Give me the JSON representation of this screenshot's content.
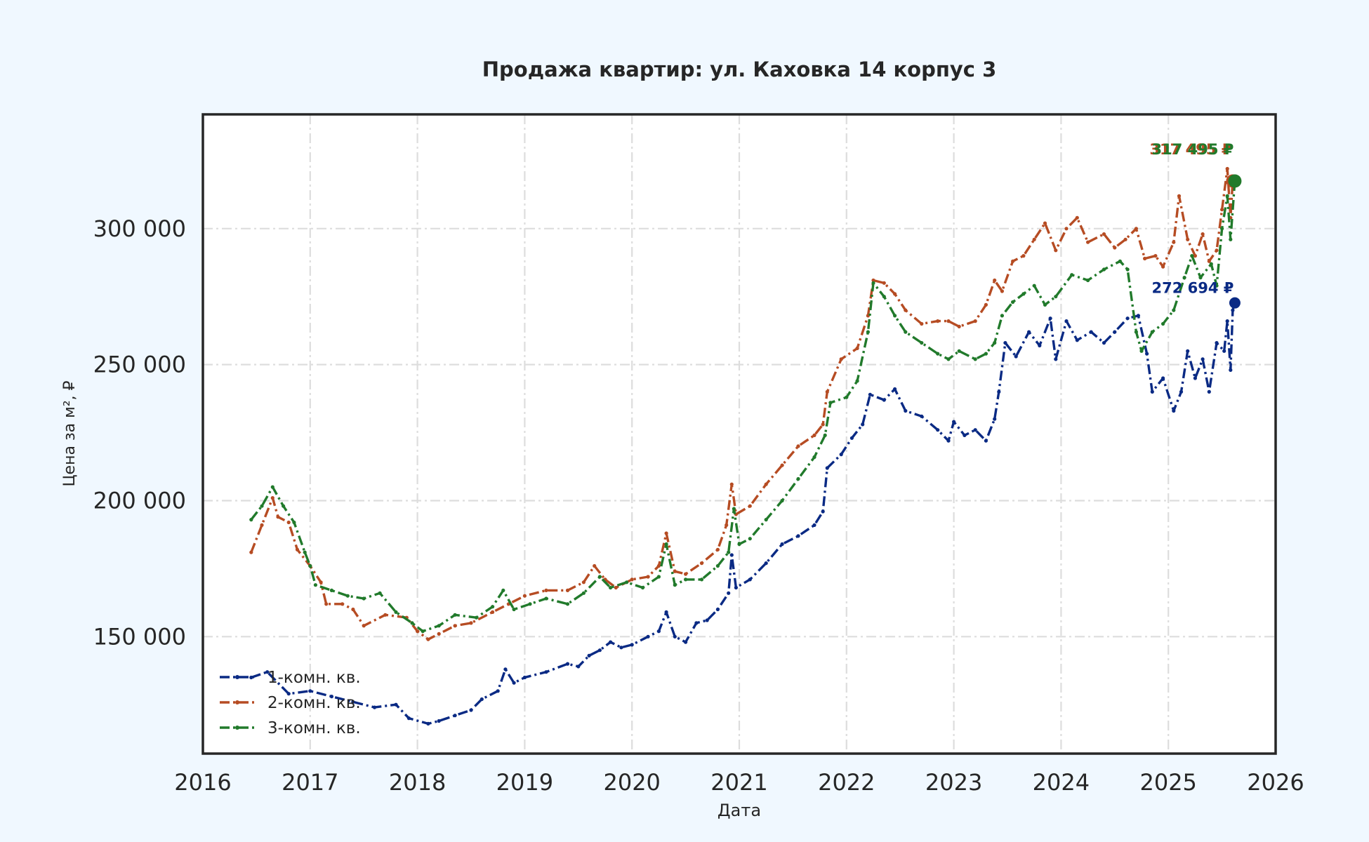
{
  "chart_data": {
    "type": "line",
    "title": "Продажа квартир: ул. Каховка 14 корпус 3",
    "xlabel": "Дата",
    "ylabel": "Цена за м², ₽",
    "xlim": [
      2016.0,
      2026.0
    ],
    "ylim": [
      107000,
      342000
    ],
    "x_ticks": [
      "2016",
      "2017",
      "2018",
      "2019",
      "2020",
      "2021",
      "2022",
      "2023",
      "2024",
      "2025",
      "2026"
    ],
    "y_ticks": [
      {
        "value": 150000,
        "label": "150 000"
      },
      {
        "value": 200000,
        "label": "200 000"
      },
      {
        "value": 250000,
        "label": "250 000"
      },
      {
        "value": 300000,
        "label": "300 000"
      }
    ],
    "grid": true,
    "legend_position": "lower-left",
    "series": [
      {
        "name": "1-комн. кв.",
        "color": "#0a2a84",
        "end_label": "272 694 ₽",
        "end_value": 272694,
        "points": [
          [
            2016.45,
            135000
          ],
          [
            2016.6,
            137000
          ],
          [
            2016.8,
            129000
          ],
          [
            2017.0,
            130000
          ],
          [
            2017.2,
            128000
          ],
          [
            2017.4,
            126000
          ],
          [
            2017.6,
            124000
          ],
          [
            2017.8,
            125000
          ],
          [
            2017.92,
            120000
          ],
          [
            2018.1,
            118000
          ],
          [
            2018.2,
            119000
          ],
          [
            2018.35,
            121000
          ],
          [
            2018.5,
            123000
          ],
          [
            2018.6,
            127000
          ],
          [
            2018.75,
            130000
          ],
          [
            2018.82,
            138000
          ],
          [
            2018.9,
            133000
          ],
          [
            2019.0,
            135000
          ],
          [
            2019.2,
            137000
          ],
          [
            2019.4,
            140000
          ],
          [
            2019.5,
            139000
          ],
          [
            2019.6,
            143000
          ],
          [
            2019.7,
            145000
          ],
          [
            2019.8,
            148000
          ],
          [
            2019.9,
            146000
          ],
          [
            2020.0,
            147000
          ],
          [
            2020.15,
            150000
          ],
          [
            2020.25,
            152000
          ],
          [
            2020.32,
            159000
          ],
          [
            2020.4,
            150000
          ],
          [
            2020.5,
            148000
          ],
          [
            2020.6,
            155000
          ],
          [
            2020.7,
            156000
          ],
          [
            2020.8,
            160000
          ],
          [
            2020.9,
            166000
          ],
          [
            2020.93,
            180000
          ],
          [
            2020.97,
            168000
          ],
          [
            2021.1,
            171000
          ],
          [
            2021.25,
            177000
          ],
          [
            2021.4,
            184000
          ],
          [
            2021.55,
            187000
          ],
          [
            2021.7,
            191000
          ],
          [
            2021.78,
            196000
          ],
          [
            2021.82,
            212000
          ],
          [
            2021.95,
            217000
          ],
          [
            2022.05,
            223000
          ],
          [
            2022.15,
            228000
          ],
          [
            2022.22,
            239000
          ],
          [
            2022.35,
            237000
          ],
          [
            2022.45,
            241000
          ],
          [
            2022.55,
            233000
          ],
          [
            2022.7,
            231000
          ],
          [
            2022.85,
            226000
          ],
          [
            2022.95,
            222000
          ],
          [
            2023.0,
            229000
          ],
          [
            2023.1,
            224000
          ],
          [
            2023.2,
            226000
          ],
          [
            2023.3,
            222000
          ],
          [
            2023.38,
            230000
          ],
          [
            2023.42,
            240000
          ],
          [
            2023.48,
            258000
          ],
          [
            2023.58,
            253000
          ],
          [
            2023.7,
            262000
          ],
          [
            2023.8,
            257000
          ],
          [
            2023.9,
            267000
          ],
          [
            2023.95,
            252000
          ],
          [
            2024.05,
            266000
          ],
          [
            2024.15,
            259000
          ],
          [
            2024.28,
            262000
          ],
          [
            2024.4,
            258000
          ],
          [
            2024.5,
            262000
          ],
          [
            2024.62,
            267000
          ],
          [
            2024.72,
            268000
          ],
          [
            2024.8,
            254000
          ],
          [
            2024.85,
            240000
          ],
          [
            2024.95,
            245000
          ],
          [
            2025.05,
            233000
          ],
          [
            2025.12,
            240000
          ],
          [
            2025.18,
            255000
          ],
          [
            2025.25,
            245000
          ],
          [
            2025.32,
            252000
          ],
          [
            2025.38,
            240000
          ],
          [
            2025.45,
            258000
          ],
          [
            2025.52,
            255000
          ],
          [
            2025.55,
            266000
          ],
          [
            2025.58,
            248000
          ],
          [
            2025.6,
            270000
          ],
          [
            2025.62,
            272694
          ]
        ]
      },
      {
        "name": "2-комн. кв.",
        "color": "#b64c23",
        "end_label": "317 495 ₽",
        "end_value": 317495,
        "points": [
          [
            2016.45,
            181000
          ],
          [
            2016.55,
            191000
          ],
          [
            2016.65,
            201000
          ],
          [
            2016.7,
            194000
          ],
          [
            2016.8,
            192000
          ],
          [
            2016.88,
            182000
          ],
          [
            2017.0,
            176000
          ],
          [
            2017.1,
            170000
          ],
          [
            2017.15,
            162000
          ],
          [
            2017.3,
            162000
          ],
          [
            2017.4,
            160000
          ],
          [
            2017.5,
            154000
          ],
          [
            2017.7,
            158000
          ],
          [
            2017.9,
            157000
          ],
          [
            2018.0,
            152000
          ],
          [
            2018.1,
            149000
          ],
          [
            2018.2,
            151000
          ],
          [
            2018.35,
            154000
          ],
          [
            2018.5,
            155000
          ],
          [
            2018.7,
            159000
          ],
          [
            2018.85,
            162000
          ],
          [
            2019.0,
            165000
          ],
          [
            2019.2,
            167000
          ],
          [
            2019.4,
            167000
          ],
          [
            2019.55,
            170000
          ],
          [
            2019.65,
            176000
          ],
          [
            2019.75,
            171000
          ],
          [
            2019.85,
            168000
          ],
          [
            2020.0,
            171000
          ],
          [
            2020.15,
            172000
          ],
          [
            2020.25,
            176000
          ],
          [
            2020.32,
            188000
          ],
          [
            2020.4,
            174000
          ],
          [
            2020.5,
            173000
          ],
          [
            2020.65,
            177000
          ],
          [
            2020.8,
            182000
          ],
          [
            2020.88,
            191000
          ],
          [
            2020.93,
            206000
          ],
          [
            2020.97,
            195000
          ],
          [
            2021.1,
            198000
          ],
          [
            2021.25,
            206000
          ],
          [
            2021.4,
            213000
          ],
          [
            2021.55,
            220000
          ],
          [
            2021.7,
            224000
          ],
          [
            2021.78,
            228000
          ],
          [
            2021.82,
            240000
          ],
          [
            2021.95,
            252000
          ],
          [
            2022.1,
            256000
          ],
          [
            2022.2,
            268000
          ],
          [
            2022.25,
            281000
          ],
          [
            2022.35,
            280000
          ],
          [
            2022.45,
            276000
          ],
          [
            2022.55,
            270000
          ],
          [
            2022.7,
            265000
          ],
          [
            2022.85,
            266000
          ],
          [
            2022.95,
            266000
          ],
          [
            2023.05,
            264000
          ],
          [
            2023.2,
            266000
          ],
          [
            2023.3,
            272000
          ],
          [
            2023.38,
            281000
          ],
          [
            2023.45,
            277000
          ],
          [
            2023.55,
            288000
          ],
          [
            2023.65,
            290000
          ],
          [
            2023.75,
            296000
          ],
          [
            2023.85,
            302000
          ],
          [
            2023.95,
            292000
          ],
          [
            2024.05,
            300000
          ],
          [
            2024.15,
            304000
          ],
          [
            2024.25,
            295000
          ],
          [
            2024.4,
            298000
          ],
          [
            2024.5,
            293000
          ],
          [
            2024.6,
            296000
          ],
          [
            2024.7,
            300000
          ],
          [
            2024.78,
            289000
          ],
          [
            2024.88,
            290000
          ],
          [
            2024.95,
            286000
          ],
          [
            2025.05,
            295000
          ],
          [
            2025.1,
            312000
          ],
          [
            2025.18,
            296000
          ],
          [
            2025.25,
            290000
          ],
          [
            2025.32,
            298000
          ],
          [
            2025.38,
            288000
          ],
          [
            2025.45,
            292000
          ],
          [
            2025.5,
            307000
          ],
          [
            2025.55,
            322000
          ],
          [
            2025.58,
            304000
          ],
          [
            2025.6,
            317495
          ]
        ]
      },
      {
        "name": "3-комн. кв.",
        "color": "#217a2b",
        "end_label": "317 495 ₽",
        "end_value": 317495,
        "points": [
          [
            2016.45,
            193000
          ],
          [
            2016.55,
            198000
          ],
          [
            2016.65,
            205000
          ],
          [
            2016.75,
            198000
          ],
          [
            2016.85,
            192000
          ],
          [
            2016.95,
            181000
          ],
          [
            2017.0,
            176000
          ],
          [
            2017.05,
            169000
          ],
          [
            2017.2,
            167000
          ],
          [
            2017.35,
            165000
          ],
          [
            2017.5,
            164000
          ],
          [
            2017.65,
            166000
          ],
          [
            2017.8,
            159000
          ],
          [
            2017.95,
            155000
          ],
          [
            2018.05,
            152000
          ],
          [
            2018.2,
            154000
          ],
          [
            2018.35,
            158000
          ],
          [
            2018.55,
            157000
          ],
          [
            2018.7,
            161000
          ],
          [
            2018.8,
            167000
          ],
          [
            2018.9,
            160000
          ],
          [
            2019.05,
            162000
          ],
          [
            2019.2,
            164000
          ],
          [
            2019.4,
            162000
          ],
          [
            2019.55,
            166000
          ],
          [
            2019.7,
            172000
          ],
          [
            2019.8,
            168000
          ],
          [
            2019.95,
            170000
          ],
          [
            2020.1,
            168000
          ],
          [
            2020.25,
            172000
          ],
          [
            2020.32,
            184000
          ],
          [
            2020.4,
            169000
          ],
          [
            2020.5,
            171000
          ],
          [
            2020.65,
            171000
          ],
          [
            2020.8,
            176000
          ],
          [
            2020.9,
            181000
          ],
          [
            2020.95,
            197000
          ],
          [
            2021.0,
            184000
          ],
          [
            2021.1,
            186000
          ],
          [
            2021.25,
            193000
          ],
          [
            2021.4,
            200000
          ],
          [
            2021.55,
            208000
          ],
          [
            2021.7,
            216000
          ],
          [
            2021.8,
            224000
          ],
          [
            2021.85,
            236000
          ],
          [
            2022.0,
            238000
          ],
          [
            2022.1,
            244000
          ],
          [
            2022.2,
            262000
          ],
          [
            2022.25,
            280000
          ],
          [
            2022.35,
            275000
          ],
          [
            2022.45,
            268000
          ],
          [
            2022.55,
            262000
          ],
          [
            2022.7,
            258000
          ],
          [
            2022.85,
            254000
          ],
          [
            2022.95,
            252000
          ],
          [
            2023.05,
            255000
          ],
          [
            2023.2,
            252000
          ],
          [
            2023.3,
            254000
          ],
          [
            2023.38,
            258000
          ],
          [
            2023.45,
            268000
          ],
          [
            2023.55,
            273000
          ],
          [
            2023.65,
            276000
          ],
          [
            2023.75,
            279000
          ],
          [
            2023.85,
            272000
          ],
          [
            2023.95,
            275000
          ],
          [
            2024.1,
            283000
          ],
          [
            2024.25,
            281000
          ],
          [
            2024.4,
            285000
          ],
          [
            2024.55,
            288000
          ],
          [
            2024.62,
            285000
          ],
          [
            2024.7,
            262000
          ],
          [
            2024.75,
            255000
          ],
          [
            2024.85,
            262000
          ],
          [
            2024.95,
            265000
          ],
          [
            2025.05,
            270000
          ],
          [
            2025.15,
            282000
          ],
          [
            2025.22,
            290000
          ],
          [
            2025.3,
            282000
          ],
          [
            2025.4,
            287000
          ],
          [
            2025.45,
            279000
          ],
          [
            2025.5,
            300000
          ],
          [
            2025.55,
            312000
          ],
          [
            2025.58,
            296000
          ],
          [
            2025.62,
            317495
          ]
        ]
      }
    ]
  }
}
